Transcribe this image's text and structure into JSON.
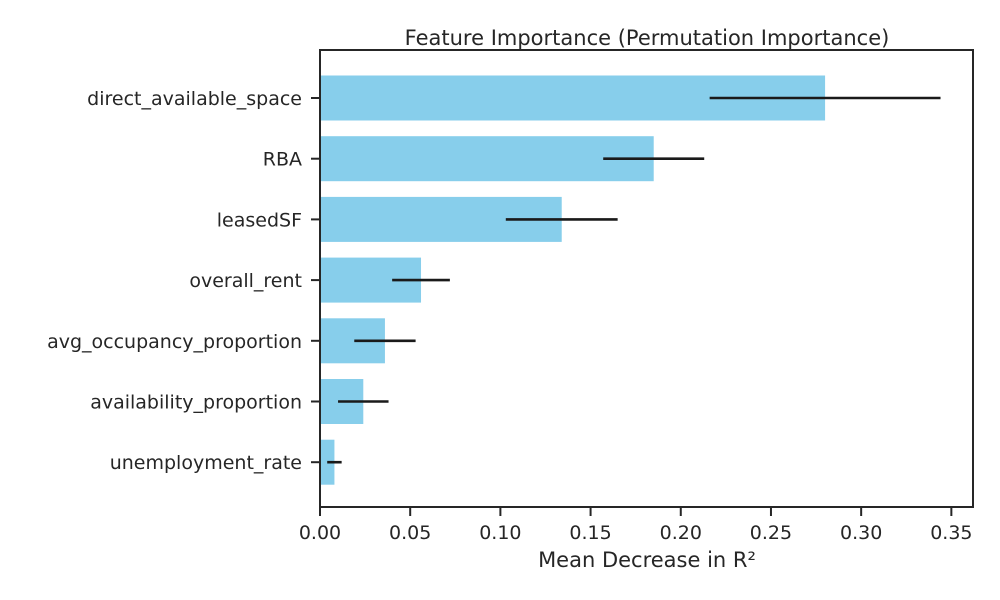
{
  "chart_data": {
    "type": "bar",
    "orientation": "horizontal",
    "title": "Feature Importance (Permutation Importance)",
    "xlabel": "Mean Decrease in R²",
    "ylabel": "",
    "xlim": [
      0,
      0.362
    ],
    "xticks": [
      "0.00",
      "0.05",
      "0.10",
      "0.15",
      "0.20",
      "0.25",
      "0.30",
      "0.35"
    ],
    "categories": [
      "direct_available_space",
      "RBA",
      "leasedSF",
      "overall_rent",
      "avg_occupancy_proportion",
      "availability_proportion",
      "unemployment_rate"
    ],
    "values": [
      0.28,
      0.185,
      0.134,
      0.056,
      0.036,
      0.024,
      0.008
    ],
    "errors": [
      0.064,
      0.028,
      0.031,
      0.016,
      0.017,
      0.014,
      0.004
    ],
    "bar_color": "#87CEEB",
    "error_color": "#1a1a1a",
    "grid": false
  }
}
